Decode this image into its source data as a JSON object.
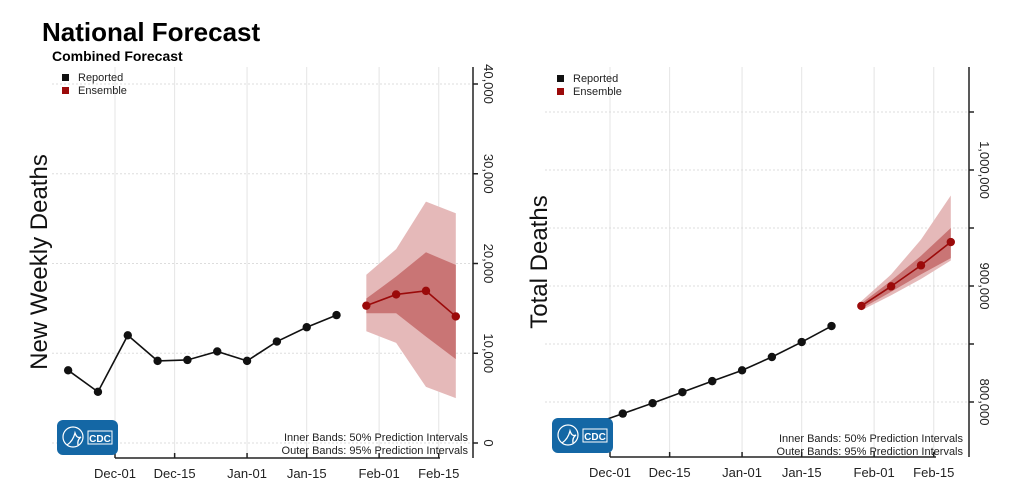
{
  "title": "National Forecast",
  "subtitle": "Combined Forecast",
  "colors": {
    "reported": "#111111",
    "ensemble": "#9b0a0a",
    "inner_band": "#c97575",
    "outer_band": "#e5b9b9",
    "logo": "#1467a5"
  },
  "logo_text": "CDC",
  "chart_data": [
    {
      "type": "line",
      "ylabel": "New Weekly Deaths",
      "xlabel": "",
      "x_unit": "days since Dec-01",
      "xticks": [
        {
          "label": "Dec-01",
          "day": 0
        },
        {
          "label": "Dec-15",
          "day": 14
        },
        {
          "label": "Jan-01",
          "day": 31
        },
        {
          "label": "Jan-15",
          "day": 45
        },
        {
          "label": "Feb-01",
          "day": 62
        },
        {
          "label": "Feb-15",
          "day": 76
        }
      ],
      "yticks": [
        {
          "label": "0",
          "value": 0
        },
        {
          "label": "10,000",
          "value": 10000
        },
        {
          "label": "20,000",
          "value": 20000
        },
        {
          "label": "30,000",
          "value": 30000
        },
        {
          "label": "40,000",
          "value": 40000
        }
      ],
      "grid_values": [
        0,
        10000,
        20000,
        30000,
        40000
      ],
      "ylim": [
        0,
        40000
      ],
      "legend": [
        {
          "label": "Reported",
          "color": "#111111"
        },
        {
          "label": "Ensemble",
          "color": "#9b0a0a"
        }
      ],
      "legend_position": "top-left",
      "notes": [
        "Inner Bands: 50% Prediction Intervals",
        "Outer Bands: 95% Prediction Intervals"
      ],
      "series": [
        {
          "name": "Reported",
          "x": [
            -11,
            -4,
            3,
            10,
            17,
            24,
            31,
            38,
            45,
            52
          ],
          "y": [
            8100,
            5700,
            12000,
            9150,
            9250,
            10200,
            9150,
            11300,
            12900,
            14250
          ]
        },
        {
          "name": "Ensemble",
          "x": [
            59,
            66,
            73,
            80
          ],
          "y": [
            15300,
            16550,
            16950,
            14100
          ],
          "inner_low": [
            14450,
            14450,
            11850,
            9350
          ],
          "inner_high": [
            16100,
            18550,
            21250,
            19850
          ],
          "outer_low": [
            12450,
            11150,
            6250,
            5000
          ],
          "outer_high": [
            18750,
            21600,
            26900,
            25600
          ]
        }
      ]
    },
    {
      "type": "line",
      "ylabel": "Total Deaths",
      "xlabel": "",
      "x_unit": "days since Dec-01",
      "xticks": [
        {
          "label": "Dec-01",
          "day": 0
        },
        {
          "label": "Dec-15",
          "day": 14
        },
        {
          "label": "Jan-01",
          "day": 31
        },
        {
          "label": "Jan-15",
          "day": 45
        },
        {
          "label": "Feb-01",
          "day": 62
        },
        {
          "label": "Feb-15",
          "day": 76
        }
      ],
      "yticks": [
        {
          "label": "800,000",
          "value": 800000
        },
        {
          "label": "900,000",
          "value": 900000
        },
        {
          "label": "1,000,000",
          "value": 1000000
        }
      ],
      "grid_values": [
        800000,
        850000,
        900000,
        950000,
        1000000,
        1050000
      ],
      "ylim": [
        770000,
        1080000
      ],
      "legend": [
        {
          "label": "Reported",
          "color": "#111111"
        },
        {
          "label": "Ensemble",
          "color": "#9b0a0a"
        }
      ],
      "legend_position": "top-left",
      "notes": [
        "Inner Bands: 50% Prediction Intervals",
        "Outer Bands: 95% Prediction Intervals"
      ],
      "series": [
        {
          "name": "Reported",
          "x": [
            -4,
            3,
            10,
            17,
            24,
            31,
            38,
            45,
            52
          ],
          "y": [
            781000,
            790000,
            799000,
            808500,
            818000,
            827300,
            838800,
            851700,
            865500
          ]
        },
        {
          "name": "Ensemble",
          "x": [
            59,
            66,
            73,
            80
          ],
          "y": [
            882800,
            899700,
            917800,
            937900
          ],
          "inner_low": [
            880500,
            895000,
            910000,
            924000
          ],
          "inner_high": [
            885000,
            904500,
            926000,
            950000
          ],
          "outer_low": [
            879000,
            892000,
            906000,
            922000
          ],
          "outer_high": [
            887000,
            910000,
            940000,
            978000
          ]
        }
      ]
    }
  ]
}
